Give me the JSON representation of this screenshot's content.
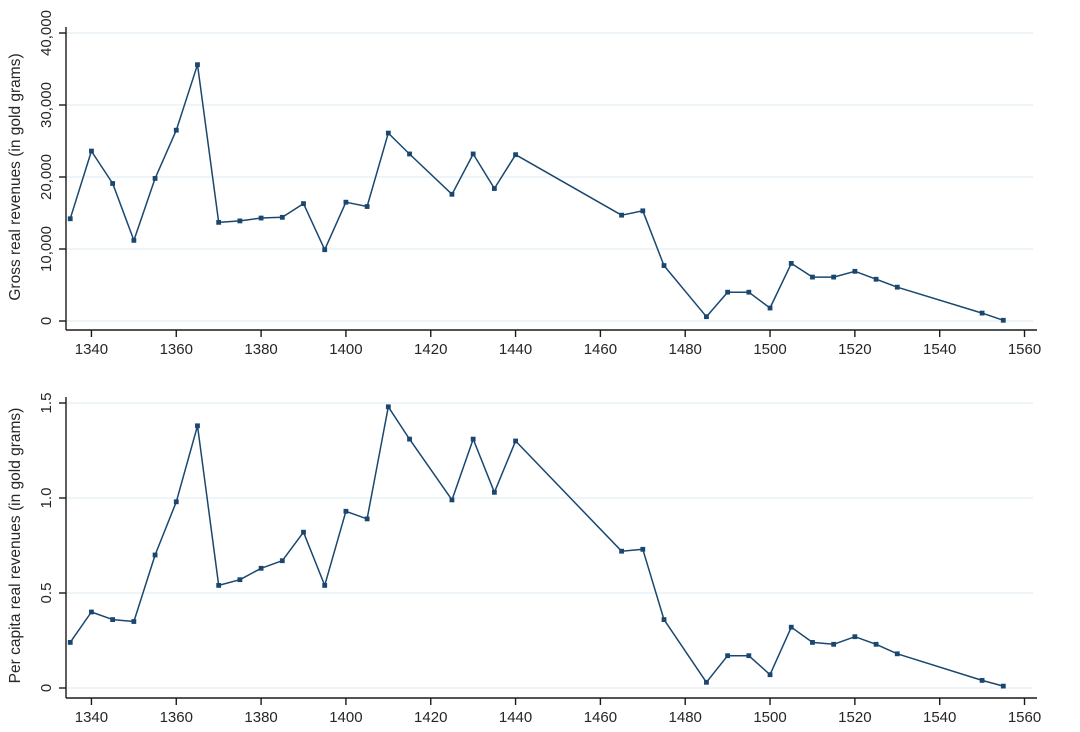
{
  "figure": {
    "background": "#ffffff",
    "line_color": "#1a476f",
    "marker_color": "#1a476f",
    "grid_color": "#e9f2f6",
    "axis_color": "#1a1a1a",
    "text_color": "#262626"
  },
  "chart_data": [
    {
      "id": "gross-real-revenues",
      "type": "line",
      "title": "",
      "xlabel": "",
      "ylabel": "Gross real revenues (in gold grams)",
      "x": [
        1335,
        1340,
        1345,
        1350,
        1355,
        1360,
        1365,
        1370,
        1375,
        1380,
        1385,
        1390,
        1395,
        1400,
        1405,
        1410,
        1415,
        1425,
        1430,
        1435,
        1440,
        1465,
        1470,
        1475,
        1485,
        1490,
        1495,
        1500,
        1505,
        1510,
        1515,
        1520,
        1525,
        1530,
        1550,
        1555
      ],
      "series": [
        {
          "name": "Gross real revenues",
          "values": [
            14200,
            23600,
            19100,
            11200,
            19800,
            26500,
            35600,
            13700,
            13900,
            14300,
            14400,
            16300,
            9900,
            16500,
            15900,
            26100,
            23200,
            17600,
            23200,
            18400,
            23100,
            14700,
            15300,
            7700,
            600,
            4000,
            4000,
            1800,
            8000,
            6100,
            6100,
            6900,
            5800,
            4700,
            1100,
            100
          ]
        }
      ],
      "xlim": [
        1334,
        1562
      ],
      "ylim": [
        0,
        40000
      ],
      "x_ticks": [
        1340,
        1360,
        1380,
        1400,
        1420,
        1440,
        1460,
        1480,
        1500,
        1520,
        1540,
        1560
      ],
      "x_tick_labels": [
        "1340",
        "1360",
        "1380",
        "1400",
        "1420",
        "1440",
        "1460",
        "1480",
        "1500",
        "1520",
        "1540",
        "1560"
      ],
      "y_ticks": [
        0,
        10000,
        20000,
        30000,
        40000
      ],
      "y_tick_labels": [
        "0",
        "10,000",
        "20,000",
        "30,000",
        "40,000"
      ],
      "grid": "horizontal",
      "legend": "none",
      "marker": "square"
    },
    {
      "id": "per-capita-real-revenues",
      "type": "line",
      "title": "",
      "xlabel": "",
      "ylabel": "Per capita real revenues (in gold grams)",
      "x": [
        1335,
        1340,
        1345,
        1350,
        1355,
        1360,
        1365,
        1370,
        1375,
        1380,
        1385,
        1390,
        1395,
        1400,
        1405,
        1410,
        1415,
        1425,
        1430,
        1435,
        1440,
        1465,
        1470,
        1475,
        1485,
        1490,
        1495,
        1500,
        1505,
        1510,
        1515,
        1520,
        1525,
        1530,
        1550,
        1555
      ],
      "series": [
        {
          "name": "Per capita real revenues",
          "values": [
            0.24,
            0.4,
            0.36,
            0.35,
            0.7,
            0.98,
            1.38,
            0.54,
            0.57,
            0.63,
            0.67,
            0.82,
            0.54,
            0.93,
            0.89,
            1.48,
            1.31,
            0.99,
            1.31,
            1.03,
            1.3,
            0.72,
            0.73,
            0.36,
            0.03,
            0.17,
            0.17,
            0.07,
            0.32,
            0.24,
            0.23,
            0.27,
            0.23,
            0.18,
            0.04,
            0.01
          ]
        }
      ],
      "xlim": [
        1334,
        1562
      ],
      "ylim": [
        0,
        1.5
      ],
      "x_ticks": [
        1340,
        1360,
        1380,
        1400,
        1420,
        1440,
        1460,
        1480,
        1500,
        1520,
        1540,
        1560
      ],
      "x_tick_labels": [
        "1340",
        "1360",
        "1380",
        "1400",
        "1420",
        "1440",
        "1460",
        "1480",
        "1500",
        "1520",
        "1540",
        "1560"
      ],
      "y_ticks": [
        0,
        0.5,
        1.0,
        1.5
      ],
      "y_tick_labels": [
        "0",
        "0.5",
        "1.0",
        "1.5"
      ],
      "grid": "horizontal",
      "legend": "none",
      "marker": "square"
    }
  ]
}
